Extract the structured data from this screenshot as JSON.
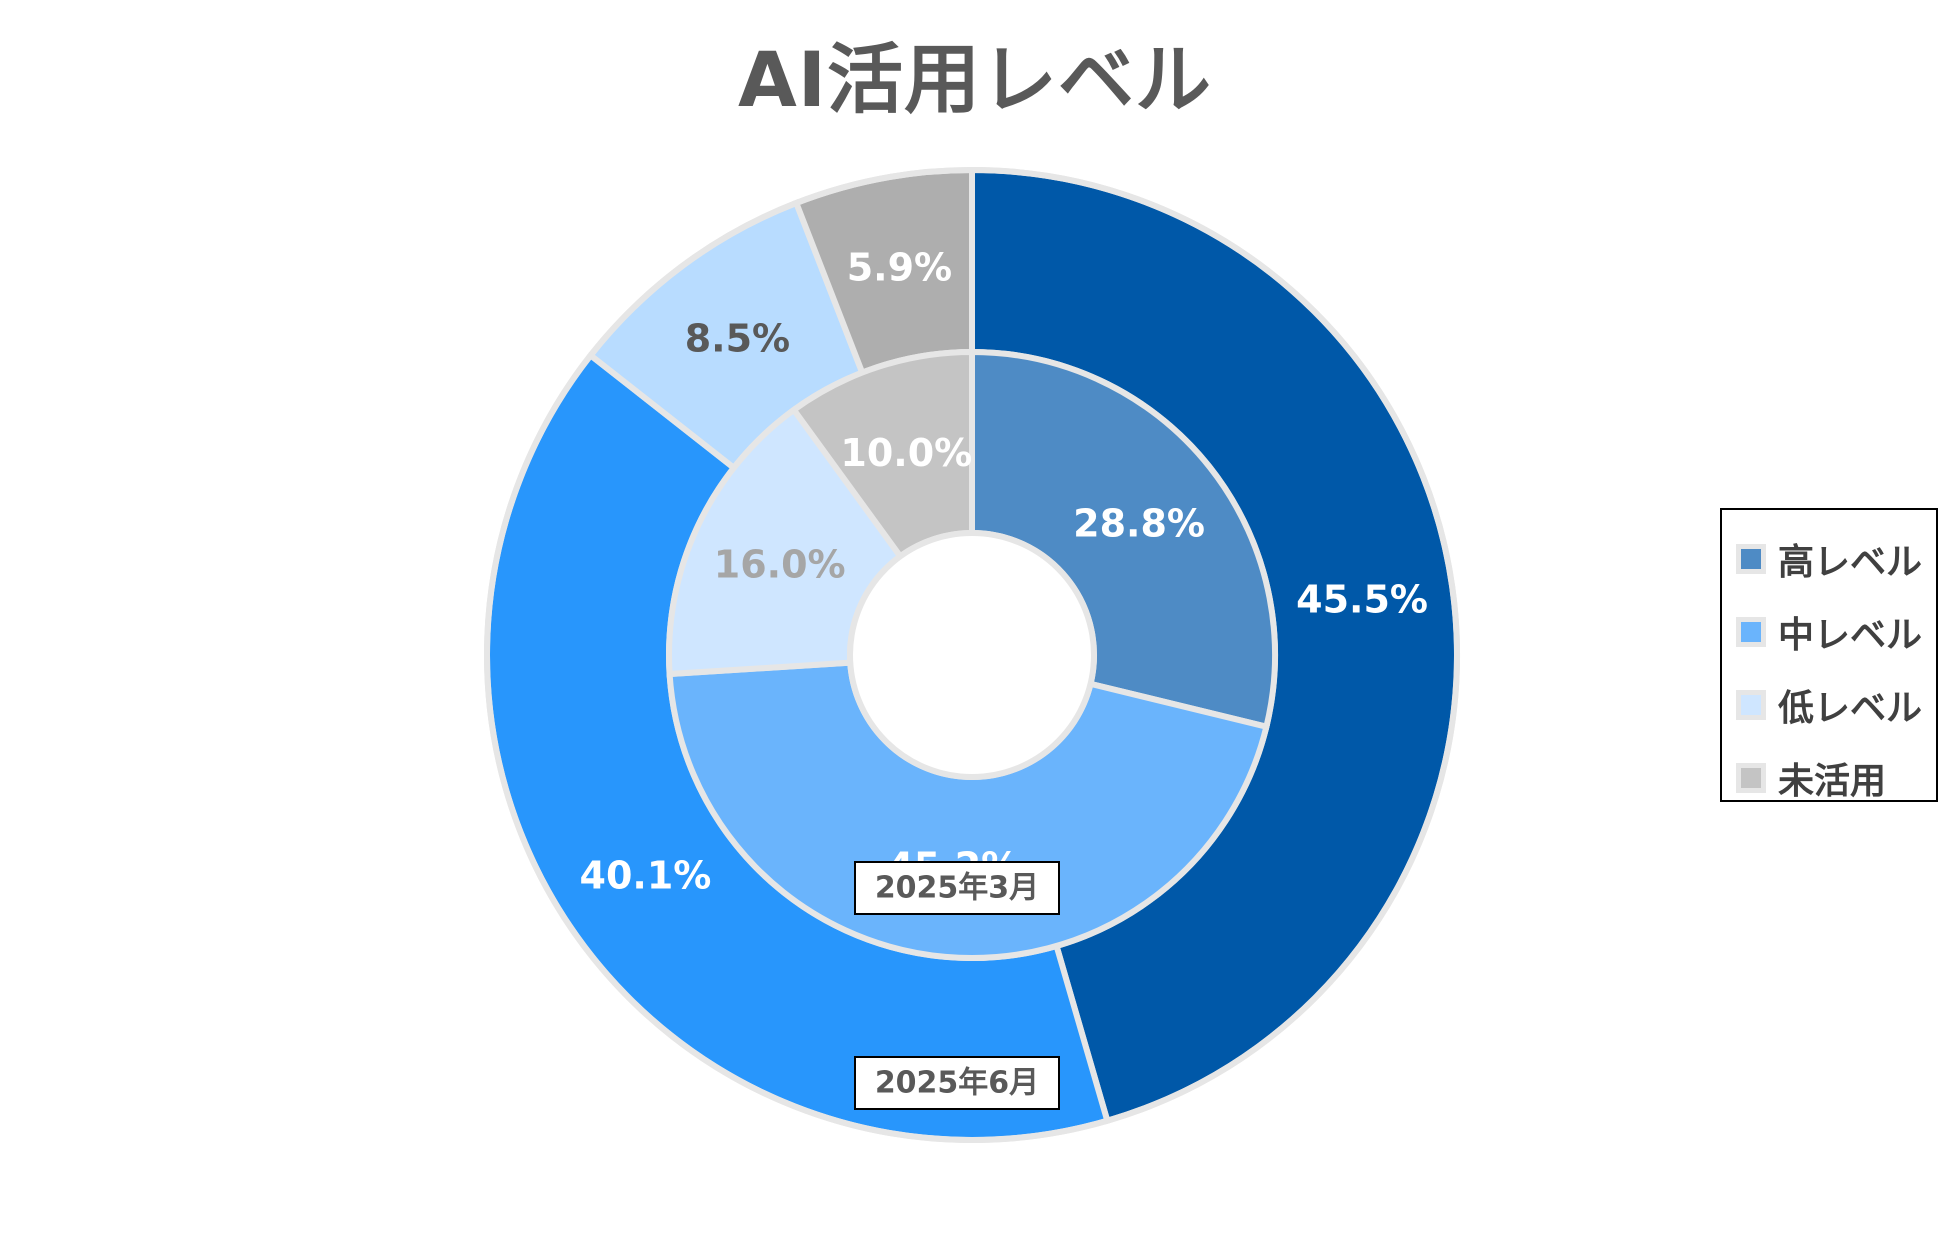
{
  "chart_data": {
    "type": "pie",
    "subtype": "donut",
    "title": "AI活用レベル",
    "categories": [
      "高レベル",
      "中レベル",
      "低レベル",
      "未活用"
    ],
    "series": [
      {
        "name": "2025年6月",
        "ring": "outer",
        "values": [
          45.5,
          40.1,
          8.5,
          5.9
        ],
        "labels": [
          "45.5%",
          "40.1%",
          "8.5%",
          "5.9%"
        ],
        "colors": [
          "#0058a8",
          "#2896fc",
          "#b8dcff",
          "#aeaeae"
        ],
        "label_colors": [
          "#ffffff",
          "#ffffff",
          "#595959",
          "#ffffff"
        ]
      },
      {
        "name": "2025年3月",
        "ring": "inner",
        "values": [
          28.8,
          45.2,
          16.0,
          10.0
        ],
        "labels": [
          "28.8%",
          "45.2%",
          "16.0%",
          "10.0%"
        ],
        "colors": [
          "#4e8bc5",
          "#6ab4fc",
          "#cfe6ff",
          "#c4c4c4"
        ],
        "label_colors": [
          "#ffffff",
          "#ffffff",
          "#a6a6a6",
          "#ffffff"
        ]
      }
    ],
    "legend": {
      "position": "right",
      "entries": [
        "高レベル",
        "中レベル",
        "低レベル",
        "未活用"
      ],
      "colors": [
        "#4e8bc5",
        "#6ab4fc",
        "#cfe6ff",
        "#c4c4c4"
      ]
    },
    "border_color": "#e6e6e6"
  }
}
